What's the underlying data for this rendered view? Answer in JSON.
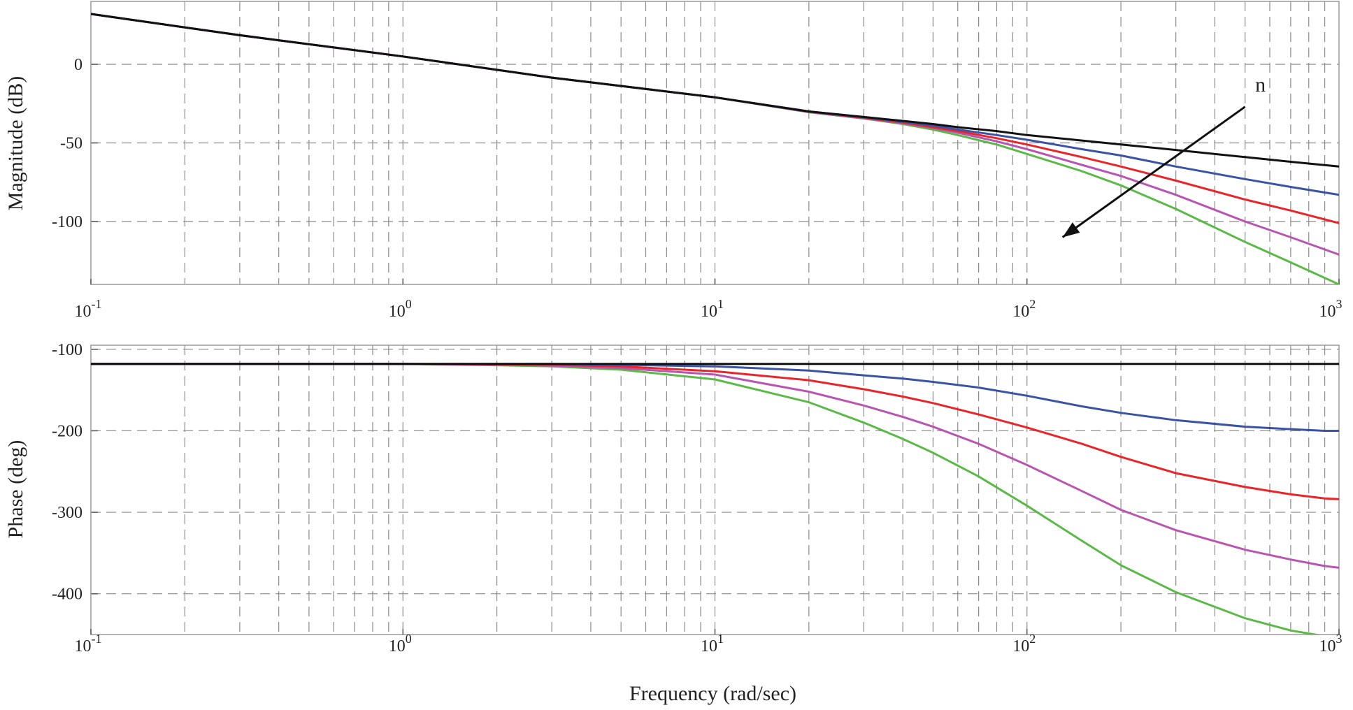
{
  "chart_data": [
    {
      "type": "line",
      "name": "magnitude",
      "xscale": "log",
      "xlim": [
        0.1,
        1000
      ],
      "ylim": [
        -140,
        40
      ],
      "ylabel": "Magnitude (dB)",
      "xlabel": "",
      "y_ticks": [
        0,
        -50,
        -100
      ],
      "y_tick_labels": [
        "0",
        "-50",
        "-100"
      ],
      "x_ticks": [
        0.1,
        1,
        10,
        100,
        1000
      ],
      "x_tick_bases": [
        "10",
        "10",
        "10",
        "10",
        "10"
      ],
      "x_tick_exps": [
        "-1",
        "0",
        "1",
        "2",
        "3"
      ],
      "annotation": {
        "text": "n",
        "arrow_from": [
          500,
          -27
        ],
        "arrow_to": [
          130,
          -110
        ]
      },
      "x": [
        0.1,
        0.3,
        1,
        3,
        10,
        20,
        30,
        40,
        50,
        60,
        80,
        100,
        150,
        200,
        300,
        500,
        700,
        1000
      ],
      "series": [
        {
          "name": "black",
          "color": "#111111",
          "values": [
            32,
            18.5,
            5,
            -8.5,
            -21,
            -30,
            -33.5,
            -36,
            -38,
            -40,
            -42.5,
            -45,
            -48.5,
            -51,
            -54.5,
            -59,
            -62,
            -65
          ]
        },
        {
          "name": "blue",
          "color": "#3a53a4",
          "values": [
            32,
            18.5,
            5,
            -8.5,
            -21,
            -30,
            -33.7,
            -36.5,
            -39,
            -41.5,
            -45,
            -48,
            -54,
            -58,
            -65,
            -73,
            -78,
            -83
          ]
        },
        {
          "name": "red",
          "color": "#e8262a",
          "values": [
            32,
            18.5,
            5,
            -8.5,
            -21,
            -30,
            -34,
            -37,
            -40,
            -42.5,
            -47,
            -51,
            -59,
            -65,
            -74,
            -86,
            -93,
            -101
          ]
        },
        {
          "name": "magenta",
          "color": "#b855b0",
          "values": [
            32,
            18.5,
            5,
            -8.5,
            -21,
            -30.3,
            -34.3,
            -37.5,
            -40.5,
            -43.5,
            -49,
            -54,
            -64,
            -71,
            -83,
            -100,
            -110,
            -121
          ]
        },
        {
          "name": "green",
          "color": "#5ab947",
          "values": [
            32,
            18.5,
            5,
            -8.5,
            -21,
            -30.5,
            -34.5,
            -38,
            -41.5,
            -45,
            -51,
            -57,
            -68,
            -77,
            -92,
            -113,
            -126,
            -140
          ]
        }
      ]
    },
    {
      "type": "line",
      "name": "phase",
      "xscale": "log",
      "xlim": [
        0.1,
        1000
      ],
      "ylim": [
        -450,
        -95
      ],
      "ylabel": "Phase (deg)",
      "xlabel": "Frequency (rad/sec)",
      "y_ticks": [
        -100,
        -200,
        -300,
        -400
      ],
      "y_tick_labels": [
        "-100",
        "-200",
        "-300",
        "-400"
      ],
      "x_ticks": [
        0.1,
        1,
        10,
        100,
        1000
      ],
      "x_tick_bases": [
        "10",
        "10",
        "10",
        "10",
        "10"
      ],
      "x_tick_exps": [
        "-1",
        "0",
        "1",
        "2",
        "3"
      ],
      "x": [
        0.1,
        0.4,
        1,
        2,
        3,
        5,
        10,
        20,
        30,
        40,
        50,
        70,
        100,
        150,
        200,
        300,
        500,
        700,
        900,
        1000
      ],
      "series": [
        {
          "name": "black",
          "color": "#111111",
          "values": [
            -118,
            -118,
            -118,
            -118,
            -118,
            -118,
            -118,
            -118,
            -118,
            -118,
            -118,
            -118,
            -118,
            -118,
            -118,
            -118,
            -118,
            -118,
            -118,
            -118
          ]
        },
        {
          "name": "blue",
          "color": "#3a53a4",
          "values": [
            -118,
            -118,
            -118,
            -118,
            -118,
            -119,
            -121,
            -126,
            -132,
            -136,
            -140,
            -147,
            -157,
            -170,
            -178,
            -187,
            -195,
            -198,
            -200,
            -200
          ]
        },
        {
          "name": "red",
          "color": "#e8262a",
          "values": [
            -118,
            -118,
            -118,
            -118.5,
            -119,
            -121,
            -127,
            -138,
            -149,
            -158,
            -166,
            -180,
            -196,
            -216,
            -232,
            -252,
            -269,
            -278,
            -283,
            -284
          ]
        },
        {
          "name": "magenta",
          "color": "#b855b0",
          "values": [
            -118,
            -118,
            -118,
            -119,
            -120,
            -123,
            -131,
            -152,
            -169,
            -183,
            -195,
            -216,
            -242,
            -274,
            -297,
            -322,
            -346,
            -358,
            -366,
            -368
          ]
        },
        {
          "name": "green",
          "color": "#5ab947",
          "values": [
            -118,
            -118,
            -118,
            -119.5,
            -121,
            -125,
            -137,
            -165,
            -190,
            -210,
            -227,
            -256,
            -292,
            -335,
            -365,
            -398,
            -430,
            -445,
            -452,
            -455
          ]
        }
      ]
    }
  ]
}
